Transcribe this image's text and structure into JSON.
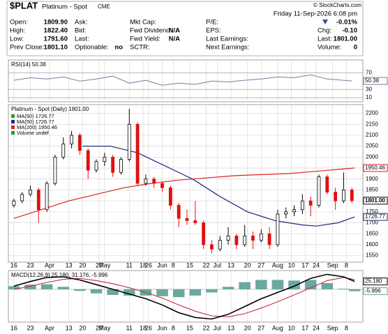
{
  "header": {
    "symbol": "$PLAT",
    "name": "Platinum - Spot",
    "exchange": "CME",
    "copyright": "© StockCharts.com",
    "datetime": "Friday 11-Sep-2026 6:08 pm",
    "change_pct": "-0.01%",
    "columns": [
      [
        [
          "Open:",
          "1809.90"
        ],
        [
          "High:",
          "1822.40"
        ],
        [
          "Low:",
          "1791.60"
        ],
        [
          "Prev Close:",
          "1801.10"
        ]
      ],
      [
        [
          "Ask:"
        ],
        [
          "Bid:"
        ],
        [
          "Last:"
        ],
        [
          "Optionable:",
          "no"
        ]
      ],
      [
        [
          "Mkt Cap:"
        ],
        [
          "Fwd Dividend:",
          "N/A"
        ],
        [
          "Fwd Yield:",
          "N/A"
        ],
        [
          "SCTR:"
        ]
      ],
      [
        [
          "P/E:"
        ],
        [
          "EPS:"
        ],
        [
          "Last Earnings:"
        ],
        [
          "Next Earnings:"
        ]
      ],
      [
        [
          "Chg:",
          "-0.10"
        ],
        [
          "Last:",
          "1801.00"
        ],
        [
          "Volume:",
          "0"
        ]
      ]
    ]
  },
  "chart_data": [
    {
      "type": "candlestick",
      "title": "Platinum - Spot (Daily) 1801.00",
      "x": [
        0,
        3,
        6,
        9,
        12,
        15,
        18,
        21,
        24,
        27,
        30,
        33,
        36,
        39,
        42,
        45,
        48,
        51,
        54,
        57,
        60,
        63,
        66,
        69,
        72,
        75,
        78,
        81,
        84,
        87,
        90,
        93,
        96,
        99,
        102,
        105,
        108,
        111,
        114,
        117,
        120,
        123
      ],
      "open": [
        1780,
        1800,
        1830,
        1850,
        1760,
        1880,
        2000,
        2060,
        2100,
        2030,
        1940,
        1980,
        2000,
        1930,
        1990,
        2150,
        1880,
        1900,
        1880,
        1860,
        1780,
        1720,
        1710,
        1700,
        1600,
        1580,
        1620,
        1640,
        1600,
        1640,
        1620,
        1650,
        1600,
        1740,
        1750,
        1760,
        1800,
        1780,
        1910,
        1840,
        1800,
        1850
      ],
      "high": [
        1810,
        1840,
        1870,
        1860,
        1890,
        2010,
        2090,
        2120,
        2110,
        2040,
        1990,
        2020,
        2010,
        2000,
        2220,
        2160,
        1920,
        1910,
        1890,
        1870,
        1790,
        1760,
        1800,
        1710,
        1620,
        1640,
        1680,
        1650,
        1690,
        1660,
        1670,
        1680,
        1760,
        1770,
        1780,
        1830,
        1820,
        1920,
        1920,
        1860,
        1930,
        1860
      ],
      "low": [
        1770,
        1790,
        1820,
        1700,
        1750,
        1870,
        1990,
        2040,
        2010,
        1900,
        1930,
        1960,
        1910,
        1920,
        1980,
        1870,
        1870,
        1860,
        1840,
        1760,
        1680,
        1690,
        1690,
        1580,
        1560,
        1570,
        1600,
        1580,
        1590,
        1580,
        1610,
        1580,
        1590,
        1720,
        1730,
        1740,
        1730,
        1770,
        1830,
        1760,
        1790,
        1790
      ],
      "close": [
        1800,
        1830,
        1850,
        1760,
        1880,
        2000,
        2060,
        2100,
        2030,
        1940,
        1980,
        2000,
        1930,
        1990,
        2150,
        1880,
        1900,
        1880,
        1860,
        1780,
        1720,
        1710,
        1700,
        1600,
        1580,
        1620,
        1640,
        1600,
        1640,
        1620,
        1650,
        1600,
        1740,
        1750,
        1760,
        1800,
        1780,
        1910,
        1840,
        1800,
        1850,
        1801
      ],
      "up_color": "#000000",
      "down_color": "#e01010",
      "series": [
        {
          "color": "#1c2a78",
          "x": [
            25,
            35,
            45,
            55,
            65,
            75,
            85,
            95,
            105,
            110,
            118,
            124
          ],
          "values": [
            2050,
            2050,
            2020,
            1960,
            1900,
            1820,
            1750,
            1710,
            1690,
            1685,
            1700,
            1726.77
          ]
        },
        {
          "color": "#e02020",
          "x": [
            0,
            10,
            20,
            30,
            40,
            50,
            60,
            70,
            80,
            90,
            100,
            110,
            124
          ],
          "values": [
            1720,
            1760,
            1800,
            1830,
            1860,
            1880,
            1895,
            1905,
            1915,
            1920,
            1925,
            1935,
            1950.46
          ]
        }
      ],
      "legend": [
        {
          "label": "MA(50) 1726.77",
          "color": "#2a9a2a"
        },
        {
          "label": "MA(50) 1726.77",
          "color": "#1c2a78"
        },
        {
          "label": "MA(200) 1950.46",
          "color": "#e02020"
        },
        {
          "label": "Volume undef",
          "color": "#2a9a2a"
        }
      ],
      "price_markers": [
        1950.46,
        {
          "value": 1801,
          "label": "1801.00"
        },
        1726.77
      ],
      "xlim": [
        -2,
        127
      ],
      "xticks": [
        {
          "value": 0,
          "label": "16"
        },
        {
          "value": 6,
          "label": "23"
        },
        {
          "value": 13,
          "label": "Apr"
        },
        {
          "value": 20,
          "label": "13"
        },
        {
          "value": 25,
          "label": "20"
        },
        {
          "value": 31,
          "label": "27"
        },
        {
          "value": 33,
          "label": "May"
        },
        {
          "value": 42,
          "label": "11"
        },
        {
          "value": 47,
          "label": "18"
        },
        {
          "value": 49,
          "label": "26"
        },
        {
          "value": 54,
          "label": "Jun"
        },
        {
          "value": 58,
          "label": "8"
        },
        {
          "value": 64,
          "label": "15"
        },
        {
          "value": 70,
          "label": "22"
        },
        {
          "value": 74,
          "label": "Jul"
        },
        {
          "value": 79,
          "label": "13"
        },
        {
          "value": 85,
          "label": "20"
        },
        {
          "value": 90,
          "label": "27"
        },
        {
          "value": 96,
          "label": "Aug"
        },
        {
          "value": 101,
          "label": "10"
        },
        {
          "value": 106,
          "label": "17"
        },
        {
          "value": 110,
          "label": "24"
        },
        {
          "value": 116,
          "label": "Sep"
        },
        {
          "value": 121,
          "label": "8"
        }
      ],
      "ylim": [
        1520,
        2240
      ],
      "yticks": [
        1550,
        1600,
        1650,
        1700,
        1750,
        1800,
        1850,
        1900,
        1950,
        2000,
        2050,
        2100,
        2150,
        2200
      ],
      "grid": true
    },
    {
      "type": "line",
      "title": "RSI(14) 50.38",
      "color": "#7080a0",
      "x": [
        0,
        6,
        12,
        18,
        24,
        30,
        36,
        42,
        48,
        54,
        60,
        66,
        72,
        78,
        84,
        90,
        96,
        102,
        108,
        114,
        123
      ],
      "values": [
        52,
        58,
        55,
        60,
        50,
        55,
        62,
        45,
        52,
        40,
        45,
        42,
        50,
        48,
        52,
        55,
        60,
        58,
        65,
        55,
        50.38
      ],
      "xlim": [
        -2,
        127
      ],
      "ylim": [
        0,
        101
      ],
      "yticks": [
        70,
        30,
        10
      ],
      "grid": true
    },
    {
      "type": "macd",
      "title": "MACD(12,26,9) 25.180, 31.176, -5.996",
      "x": [
        0,
        6,
        12,
        18,
        24,
        30,
        36,
        42,
        48,
        54,
        60,
        66,
        72,
        78,
        84,
        90,
        96,
        102,
        108,
        114,
        120,
        124
      ],
      "macd": [
        10,
        25,
        38,
        40,
        30,
        15,
        0,
        -15,
        -30,
        -50,
        -75,
        -90,
        -95,
        -80,
        -55,
        -30,
        -10,
        10,
        35,
        48,
        40,
        25.18
      ],
      "signal": [
        0,
        10,
        22,
        32,
        35,
        28,
        18,
        5,
        -10,
        -28,
        -50,
        -70,
        -85,
        -88,
        -78,
        -60,
        -40,
        -18,
        5,
        28,
        38,
        31.176
      ],
      "histogram": [
        10,
        15,
        16,
        8,
        -5,
        -13,
        -18,
        -20,
        -20,
        -22,
        -25,
        -20,
        -10,
        8,
        23,
        30,
        30,
        28,
        30,
        20,
        2,
        -5.996
      ],
      "colors": {
        "macd": "#000000",
        "signal": "#c03040",
        "histogram": "#6aa8a0"
      },
      "markers": [
        {
          "value": 25.18,
          "label": "25.180"
        },
        {
          "value": -5.996,
          "label": "-5.996"
        }
      ],
      "xlim": [
        -2,
        127
      ],
      "ylim": [
        -105,
        60
      ]
    }
  ]
}
